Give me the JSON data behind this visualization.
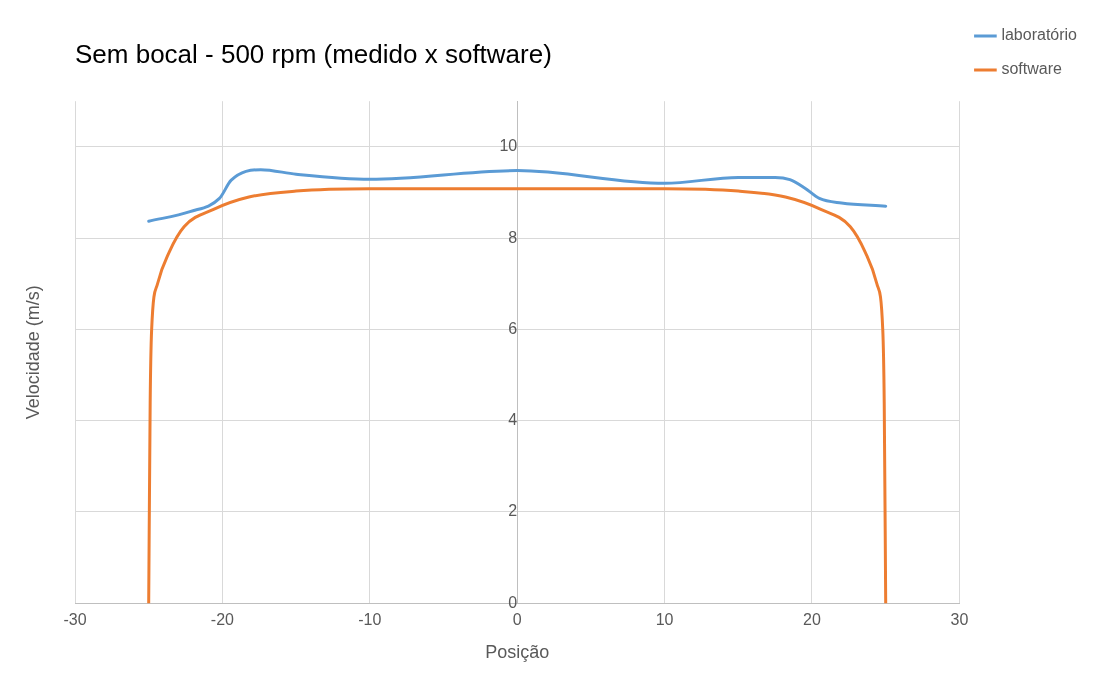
{
  "chart_data": {
    "type": "line",
    "title": "Sem bocal - 500 rpm (medido x software)",
    "xlabel": "Posição",
    "ylabel": "Velocidade (m/s)",
    "series": [
      {
        "name": "laboratório",
        "color": "#5b9bd5",
        "x": [
          -25,
          -22.2,
          -20.2,
          -19.4,
          -17.4,
          -15,
          -10,
          0,
          10,
          15,
          17.5,
          18.5,
          19.5,
          20.5,
          22,
          25
        ],
        "values": [
          8.37,
          8.58,
          8.87,
          9.27,
          9.5,
          9.4,
          9.29,
          9.48,
          9.2,
          9.33,
          9.33,
          9.28,
          9.1,
          8.87,
          8.77,
          8.7
        ]
      },
      {
        "name": "software",
        "color": "#ed7d31",
        "x": [
          -25,
          -24.9,
          -24.8,
          -24.4,
          -23.6,
          -22.6,
          -20.6,
          -18.2,
          -15,
          -10,
          0,
          10,
          15,
          18.2,
          20.6,
          22.6,
          23.6,
          24.4,
          24.8,
          24.9,
          25
        ],
        "values": [
          0,
          4.4,
          6,
          7,
          7.7,
          8.25,
          8.63,
          8.9,
          9.03,
          9.08,
          9.08,
          9.08,
          9.03,
          8.9,
          8.63,
          8.25,
          7.7,
          7,
          6,
          4.4,
          0
        ]
      }
    ],
    "xlim": [
      -30,
      30
    ],
    "xticks": [
      -30,
      -20,
      -10,
      0,
      10,
      20,
      30
    ],
    "ylim": [
      0,
      11
    ],
    "yticks": [
      0,
      2,
      4,
      6,
      8,
      10
    ],
    "grid": true,
    "legend": "right",
    "marker": "none",
    "line_style": "solid"
  }
}
